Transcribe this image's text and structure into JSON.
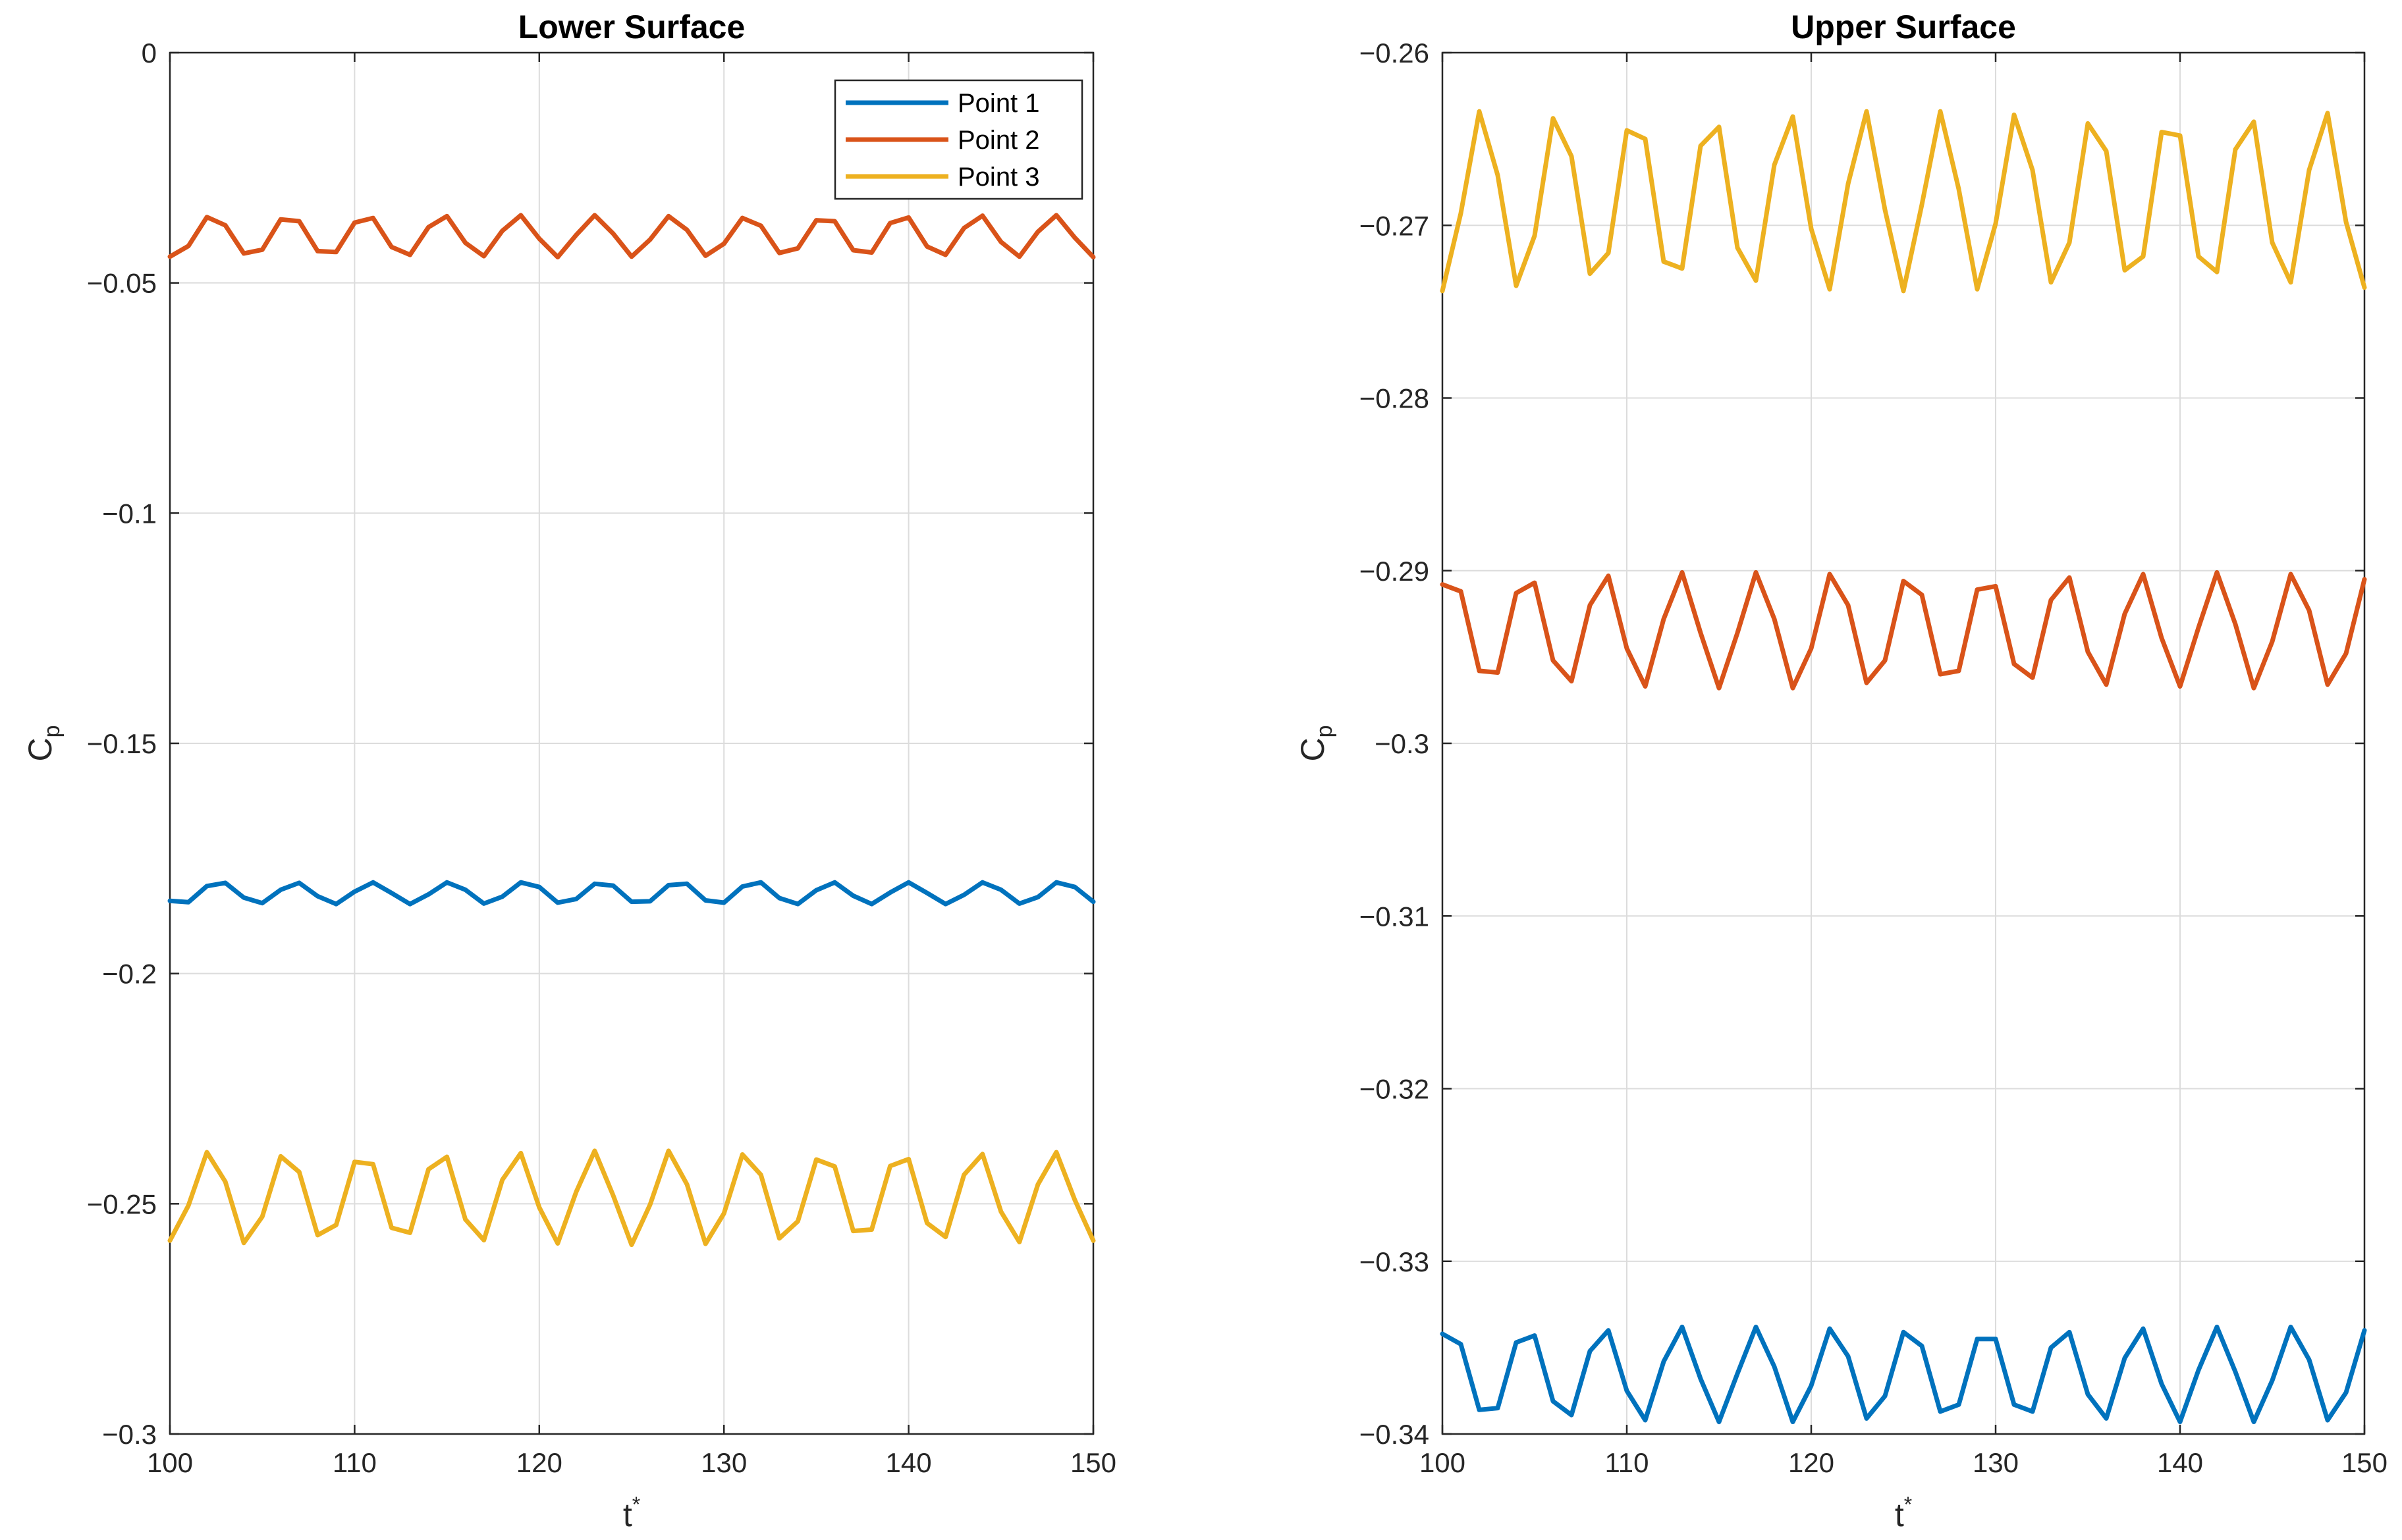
{
  "chart_data": [
    {
      "type": "line",
      "title": "Lower Surface",
      "xlabel": "t",
      "xlabel_sup": "*",
      "ylabel": "C",
      "ylabel_sub": "p",
      "xlim": [
        100,
        150
      ],
      "ylim": [
        -0.3,
        0
      ],
      "xticks": [
        100,
        110,
        120,
        130,
        140,
        150
      ],
      "yticks": [
        -0.3,
        -0.25,
        -0.2,
        -0.15,
        -0.1,
        -0.05,
        0
      ],
      "ytick_labels": [
        "−0.3",
        "−0.25",
        "−0.2",
        "−0.15",
        "−0.1",
        "−0.05",
        "0"
      ],
      "xtick_labels": [
        "100",
        "110",
        "120",
        "130",
        "140",
        "150"
      ],
      "grid": true,
      "legend": {
        "position": "top-right",
        "entries": [
          "Point 1",
          "Point 2",
          "Point 3"
        ]
      },
      "x_start": 100,
      "x_step": 1,
      "series": [
        {
          "name": "Point 1",
          "color": "#0072BD",
          "values": [
            -0.1842,
            -0.1845,
            -0.181,
            -0.1803,
            -0.1835,
            -0.1847,
            -0.1818,
            -0.1803,
            -0.1832,
            -0.1849,
            -0.1822,
            -0.1802,
            -0.1825,
            -0.1849,
            -0.1828,
            -0.1802,
            -0.1818,
            -0.1848,
            -0.1833,
            -0.1802,
            -0.1812,
            -0.1846,
            -0.1838,
            -0.1805,
            -0.1809,
            -0.1844,
            -0.1843,
            -0.1808,
            -0.1805,
            -0.1841,
            -0.1846,
            -0.1811,
            -0.1802,
            -0.1836,
            -0.1849,
            -0.1819,
            -0.1802,
            -0.1831,
            -0.1849,
            -0.1824,
            -0.1802,
            -0.1825,
            -0.1849,
            -0.1829,
            -0.1802,
            -0.1818,
            -0.1848,
            -0.1834,
            -0.1802,
            -0.1812,
            -0.1844
          ]
        },
        {
          "name": "Point 2",
          "color": "#D95319",
          "values": [
            -0.0443,
            -0.042,
            -0.0357,
            -0.0375,
            -0.0436,
            -0.0428,
            -0.0362,
            -0.0366,
            -0.0431,
            -0.0433,
            -0.0369,
            -0.0359,
            -0.0422,
            -0.0439,
            -0.0379,
            -0.0355,
            -0.0413,
            -0.0442,
            -0.0387,
            -0.0353,
            -0.0404,
            -0.0444,
            -0.0396,
            -0.0353,
            -0.0393,
            -0.0443,
            -0.0406,
            -0.0355,
            -0.0385,
            -0.0441,
            -0.0415,
            -0.0359,
            -0.0376,
            -0.0435,
            -0.0425,
            -0.0364,
            -0.0366,
            -0.0429,
            -0.0434,
            -0.037,
            -0.0358,
            -0.0421,
            -0.0439,
            -0.0381,
            -0.0354,
            -0.0411,
            -0.0443,
            -0.0389,
            -0.0353,
            -0.0402,
            -0.0444
          ]
        },
        {
          "name": "Point 3",
          "color": "#EDB120",
          "values": [
            -0.258,
            -0.2504,
            -0.2388,
            -0.2452,
            -0.2585,
            -0.2528,
            -0.2397,
            -0.2431,
            -0.2568,
            -0.2546,
            -0.2409,
            -0.2414,
            -0.2552,
            -0.2563,
            -0.2425,
            -0.2398,
            -0.2534,
            -0.2579,
            -0.2448,
            -0.239,
            -0.2508,
            -0.2586,
            -0.2474,
            -0.2385,
            -0.2482,
            -0.2589,
            -0.2502,
            -0.2385,
            -0.2458,
            -0.2587,
            -0.2521,
            -0.2393,
            -0.2437,
            -0.2575,
            -0.2538,
            -0.2404,
            -0.2419,
            -0.2559,
            -0.2556,
            -0.2418,
            -0.2403,
            -0.2542,
            -0.2572,
            -0.2437,
            -0.2392,
            -0.2517,
            -0.2583,
            -0.2458,
            -0.2388,
            -0.2492,
            -0.258
          ]
        }
      ]
    },
    {
      "type": "line",
      "title": "Upper Surface",
      "xlabel": "t",
      "xlabel_sup": "*",
      "ylabel": "C",
      "ylabel_sub": "p",
      "xlim": [
        100,
        150
      ],
      "ylim": [
        -0.34,
        -0.26
      ],
      "xticks": [
        100,
        110,
        120,
        130,
        140,
        150
      ],
      "yticks": [
        -0.34,
        -0.33,
        -0.32,
        -0.31,
        -0.3,
        -0.29,
        -0.28,
        -0.27,
        -0.26
      ],
      "ytick_labels": [
        "−0.34",
        "−0.33",
        "−0.32",
        "−0.31",
        "−0.3",
        "−0.29",
        "−0.28",
        "−0.27",
        "−0.26"
      ],
      "xtick_labels": [
        "100",
        "110",
        "120",
        "130",
        "140",
        "150"
      ],
      "grid": true,
      "x_start": 100,
      "x_step": 1,
      "series": [
        {
          "name": "Point 1",
          "color": "#0072BD",
          "values": [
            -0.3342,
            -0.3348,
            -0.3386,
            -0.3385,
            -0.3347,
            -0.3343,
            -0.3381,
            -0.3389,
            -0.3352,
            -0.334,
            -0.3375,
            -0.3392,
            -0.3358,
            -0.3338,
            -0.3368,
            -0.3393,
            -0.3365,
            -0.3338,
            -0.3361,
            -0.3393,
            -0.3372,
            -0.3339,
            -0.3355,
            -0.3391,
            -0.3378,
            -0.3341,
            -0.3349,
            -0.3387,
            -0.3383,
            -0.3345,
            -0.3345,
            -0.3383,
            -0.3387,
            -0.335,
            -0.3341,
            -0.3377,
            -0.3391,
            -0.3356,
            -0.3339,
            -0.3371,
            -0.3393,
            -0.3363,
            -0.3338,
            -0.3364,
            -0.3393,
            -0.3369,
            -0.3338,
            -0.3357,
            -0.3392,
            -0.3376,
            -0.334
          ]
        },
        {
          "name": "Point 2",
          "color": "#D95319",
          "values": [
            -0.2908,
            -0.2912,
            -0.2958,
            -0.2959,
            -0.2913,
            -0.2907,
            -0.2952,
            -0.2964,
            -0.292,
            -0.2903,
            -0.2945,
            -0.2967,
            -0.2928,
            -0.2901,
            -0.2936,
            -0.2968,
            -0.2936,
            -0.2901,
            -0.2928,
            -0.2968,
            -0.2945,
            -0.2902,
            -0.292,
            -0.2965,
            -0.2952,
            -0.2906,
            -0.2914,
            -0.296,
            -0.2958,
            -0.2911,
            -0.2909,
            -0.2954,
            -0.2962,
            -0.2917,
            -0.2904,
            -0.2947,
            -0.2966,
            -0.2925,
            -0.2902,
            -0.2939,
            -0.2967,
            -0.2933,
            -0.2901,
            -0.2931,
            -0.2968,
            -0.2941,
            -0.2902,
            -0.2923,
            -0.2966,
            -0.2948,
            -0.2905
          ]
        },
        {
          "name": "Point 3",
          "color": "#EDB120",
          "values": [
            -0.2738,
            -0.2693,
            -0.2634,
            -0.2671,
            -0.2735,
            -0.2706,
            -0.2638,
            -0.266,
            -0.2728,
            -0.2716,
            -0.2645,
            -0.265,
            -0.2721,
            -0.2725,
            -0.2654,
            -0.2643,
            -0.2713,
            -0.2732,
            -0.2665,
            -0.2637,
            -0.2702,
            -0.2737,
            -0.2676,
            -0.2634,
            -0.2691,
            -0.2738,
            -0.2688,
            -0.2634,
            -0.2679,
            -0.2737,
            -0.2699,
            -0.2636,
            -0.2668,
            -0.2733,
            -0.271,
            -0.2641,
            -0.2657,
            -0.2726,
            -0.2718,
            -0.2646,
            -0.2648,
            -0.2718,
            -0.2727,
            -0.2656,
            -0.264,
            -0.271,
            -0.2733,
            -0.2668,
            -0.2635,
            -0.2698,
            -0.2736
          ]
        }
      ]
    }
  ]
}
